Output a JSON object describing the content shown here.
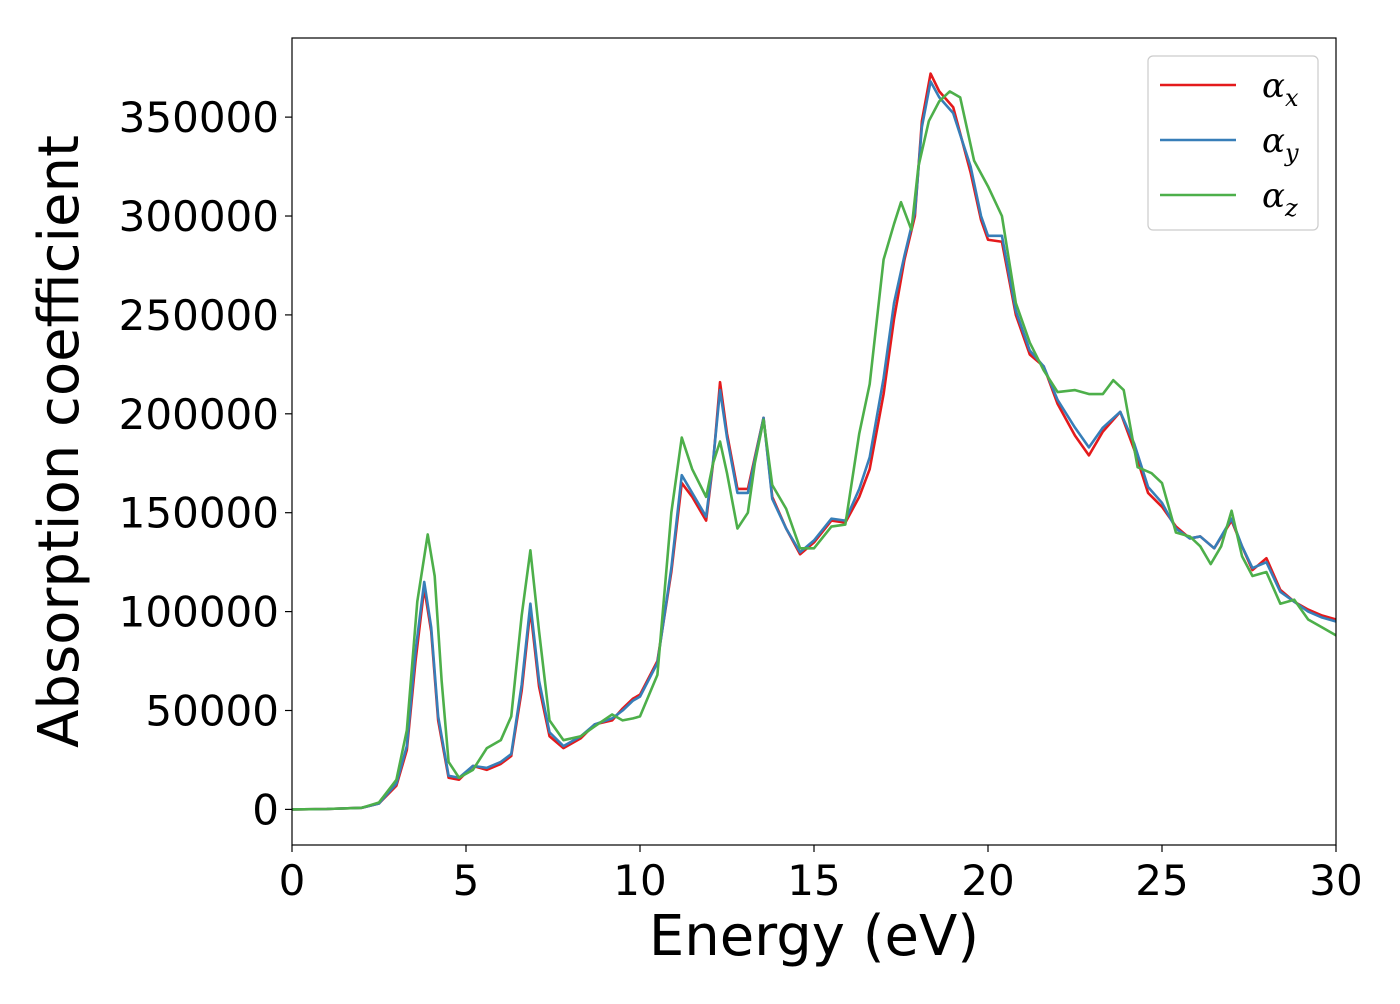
{
  "chart_data": {
    "type": "line",
    "xlabel": "Energy (eV)",
    "ylabel": "Absorption coefficient",
    "xlim": [
      0,
      30
    ],
    "ylim": [
      -18000,
      390000
    ],
    "xticks": [
      0,
      5,
      10,
      15,
      20,
      25,
      30
    ],
    "xtick_labels": [
      "0",
      "5",
      "10",
      "15",
      "20",
      "25",
      "30"
    ],
    "yticks": [
      0,
      50000,
      100000,
      150000,
      200000,
      250000,
      300000,
      350000
    ],
    "ytick_labels": [
      "0",
      "50000",
      "100000",
      "150000",
      "200000",
      "250000",
      "300000",
      "350000"
    ],
    "grid": false,
    "legend_position": "top-right",
    "series": [
      {
        "name": "αx",
        "label_base": "α",
        "label_sub": "x",
        "color": "#e41a1c",
        "points": [
          [
            0,
            0
          ],
          [
            1,
            200
          ],
          [
            2,
            800
          ],
          [
            2.5,
            3000
          ],
          [
            3.0,
            12000
          ],
          [
            3.3,
            30000
          ],
          [
            3.55,
            75000
          ],
          [
            3.8,
            112000
          ],
          [
            4.0,
            90000
          ],
          [
            4.2,
            45000
          ],
          [
            4.5,
            16000
          ],
          [
            4.8,
            15000
          ],
          [
            5.2,
            22000
          ],
          [
            5.6,
            20000
          ],
          [
            6.0,
            23000
          ],
          [
            6.3,
            27000
          ],
          [
            6.6,
            60000
          ],
          [
            6.85,
            101000
          ],
          [
            7.1,
            62000
          ],
          [
            7.4,
            37000
          ],
          [
            7.8,
            31000
          ],
          [
            8.3,
            36000
          ],
          [
            8.7,
            43000
          ],
          [
            9.2,
            45000
          ],
          [
            9.5,
            51000
          ],
          [
            9.8,
            56000
          ],
          [
            10.0,
            58000
          ],
          [
            10.5,
            75000
          ],
          [
            10.9,
            120000
          ],
          [
            11.2,
            165000
          ],
          [
            11.5,
            158000
          ],
          [
            11.9,
            146000
          ],
          [
            12.1,
            175000
          ],
          [
            12.3,
            216000
          ],
          [
            12.5,
            190000
          ],
          [
            12.8,
            162000
          ],
          [
            13.1,
            162000
          ],
          [
            13.3,
            178000
          ],
          [
            13.55,
            198000
          ],
          [
            13.8,
            158000
          ],
          [
            14.2,
            142000
          ],
          [
            14.6,
            129000
          ],
          [
            15.0,
            135000
          ],
          [
            15.5,
            146000
          ],
          [
            15.9,
            145000
          ],
          [
            16.3,
            158000
          ],
          [
            16.6,
            172000
          ],
          [
            17.0,
            210000
          ],
          [
            17.3,
            248000
          ],
          [
            17.6,
            278000
          ],
          [
            17.9,
            300000
          ],
          [
            18.1,
            348000
          ],
          [
            18.35,
            372000
          ],
          [
            18.6,
            363000
          ],
          [
            19.0,
            355000
          ],
          [
            19.5,
            322000
          ],
          [
            19.8,
            298000
          ],
          [
            20.0,
            288000
          ],
          [
            20.4,
            287000
          ],
          [
            20.8,
            250000
          ],
          [
            21.2,
            230000
          ],
          [
            21.6,
            224000
          ],
          [
            22.0,
            205000
          ],
          [
            22.5,
            189000
          ],
          [
            22.9,
            179000
          ],
          [
            23.3,
            191000
          ],
          [
            23.8,
            201000
          ],
          [
            24.2,
            182000
          ],
          [
            24.6,
            160000
          ],
          [
            25.0,
            153000
          ],
          [
            25.4,
            143000
          ],
          [
            25.8,
            137000
          ],
          [
            26.1,
            138000
          ],
          [
            26.5,
            132000
          ],
          [
            27.0,
            146000
          ],
          [
            27.3,
            133000
          ],
          [
            27.6,
            121000
          ],
          [
            28.0,
            127000
          ],
          [
            28.4,
            111000
          ],
          [
            28.8,
            105000
          ],
          [
            29.2,
            101000
          ],
          [
            29.6,
            98000
          ],
          [
            30,
            96000
          ]
        ]
      },
      {
        "name": "αy",
        "label_base": "α",
        "label_sub": "y",
        "color": "#377eb8",
        "points": [
          [
            0,
            0
          ],
          [
            1,
            200
          ],
          [
            2,
            800
          ],
          [
            2.5,
            3000
          ],
          [
            3.0,
            13000
          ],
          [
            3.3,
            32000
          ],
          [
            3.55,
            80000
          ],
          [
            3.8,
            115000
          ],
          [
            4.0,
            92000
          ],
          [
            4.2,
            47000
          ],
          [
            4.5,
            17000
          ],
          [
            4.8,
            16000
          ],
          [
            5.2,
            22000
          ],
          [
            5.6,
            21000
          ],
          [
            6.0,
            24000
          ],
          [
            6.3,
            28000
          ],
          [
            6.6,
            63000
          ],
          [
            6.85,
            104000
          ],
          [
            7.1,
            65000
          ],
          [
            7.4,
            39000
          ],
          [
            7.8,
            32000
          ],
          [
            8.3,
            37000
          ],
          [
            8.7,
            43000
          ],
          [
            9.2,
            46000
          ],
          [
            9.5,
            50000
          ],
          [
            9.8,
            55000
          ],
          [
            10.0,
            57000
          ],
          [
            10.5,
            74000
          ],
          [
            10.9,
            122000
          ],
          [
            11.2,
            169000
          ],
          [
            11.5,
            160000
          ],
          [
            11.9,
            148000
          ],
          [
            12.1,
            176000
          ],
          [
            12.3,
            212000
          ],
          [
            12.5,
            188000
          ],
          [
            12.8,
            160000
          ],
          [
            13.1,
            160000
          ],
          [
            13.3,
            177000
          ],
          [
            13.55,
            198000
          ],
          [
            13.8,
            157000
          ],
          [
            14.2,
            142000
          ],
          [
            14.6,
            130000
          ],
          [
            15.0,
            136000
          ],
          [
            15.5,
            147000
          ],
          [
            15.9,
            146000
          ],
          [
            16.3,
            162000
          ],
          [
            16.6,
            178000
          ],
          [
            17.0,
            218000
          ],
          [
            17.3,
            256000
          ],
          [
            17.6,
            280000
          ],
          [
            17.9,
            302000
          ],
          [
            18.1,
            345000
          ],
          [
            18.35,
            368000
          ],
          [
            18.6,
            360000
          ],
          [
            19.0,
            352000
          ],
          [
            19.5,
            325000
          ],
          [
            19.8,
            300000
          ],
          [
            20.0,
            290000
          ],
          [
            20.4,
            290000
          ],
          [
            20.8,
            252000
          ],
          [
            21.2,
            232000
          ],
          [
            21.6,
            224000
          ],
          [
            22.0,
            207000
          ],
          [
            22.5,
            193000
          ],
          [
            22.9,
            183000
          ],
          [
            23.3,
            193000
          ],
          [
            23.8,
            201000
          ],
          [
            24.2,
            185000
          ],
          [
            24.6,
            163000
          ],
          [
            25.0,
            155000
          ],
          [
            25.4,
            142000
          ],
          [
            25.8,
            137000
          ],
          [
            26.1,
            138000
          ],
          [
            26.5,
            132000
          ],
          [
            27.0,
            147000
          ],
          [
            27.3,
            133000
          ],
          [
            27.6,
            122000
          ],
          [
            28.0,
            125000
          ],
          [
            28.4,
            110000
          ],
          [
            28.8,
            105000
          ],
          [
            29.2,
            100000
          ],
          [
            29.6,
            97000
          ],
          [
            30,
            95000
          ]
        ]
      },
      {
        "name": "αz",
        "label_base": "α",
        "label_sub": "z",
        "color": "#4daf4a",
        "points": [
          [
            0,
            0
          ],
          [
            1,
            200
          ],
          [
            2,
            800
          ],
          [
            2.5,
            3500
          ],
          [
            3.0,
            15000
          ],
          [
            3.3,
            40000
          ],
          [
            3.6,
            105000
          ],
          [
            3.9,
            139000
          ],
          [
            4.1,
            118000
          ],
          [
            4.3,
            65000
          ],
          [
            4.5,
            24000
          ],
          [
            4.8,
            16000
          ],
          [
            5.2,
            20000
          ],
          [
            5.6,
            31000
          ],
          [
            6.0,
            35000
          ],
          [
            6.3,
            47000
          ],
          [
            6.6,
            98000
          ],
          [
            6.85,
            131000
          ],
          [
            7.1,
            90000
          ],
          [
            7.4,
            45000
          ],
          [
            7.8,
            35000
          ],
          [
            8.3,
            37000
          ],
          [
            8.7,
            42000
          ],
          [
            9.2,
            48000
          ],
          [
            9.5,
            45000
          ],
          [
            9.8,
            46000
          ],
          [
            10.0,
            47000
          ],
          [
            10.5,
            68000
          ],
          [
            10.9,
            150000
          ],
          [
            11.2,
            188000
          ],
          [
            11.5,
            172000
          ],
          [
            11.9,
            158000
          ],
          [
            12.1,
            175000
          ],
          [
            12.3,
            186000
          ],
          [
            12.5,
            170000
          ],
          [
            12.8,
            142000
          ],
          [
            13.1,
            150000
          ],
          [
            13.3,
            175000
          ],
          [
            13.55,
            197000
          ],
          [
            13.8,
            164000
          ],
          [
            14.2,
            152000
          ],
          [
            14.6,
            132000
          ],
          [
            15.0,
            132000
          ],
          [
            15.5,
            143000
          ],
          [
            15.9,
            144000
          ],
          [
            16.3,
            190000
          ],
          [
            16.6,
            215000
          ],
          [
            17.0,
            278000
          ],
          [
            17.3,
            296000
          ],
          [
            17.5,
            307000
          ],
          [
            17.8,
            293000
          ],
          [
            18.0,
            325000
          ],
          [
            18.3,
            348000
          ],
          [
            18.6,
            358000
          ],
          [
            18.9,
            363000
          ],
          [
            19.2,
            360000
          ],
          [
            19.6,
            328000
          ],
          [
            20.0,
            315000
          ],
          [
            20.4,
            300000
          ],
          [
            20.8,
            256000
          ],
          [
            21.2,
            236000
          ],
          [
            21.6,
            222000
          ],
          [
            22.0,
            211000
          ],
          [
            22.5,
            212000
          ],
          [
            22.9,
            210000
          ],
          [
            23.3,
            210000
          ],
          [
            23.6,
            217000
          ],
          [
            23.9,
            212000
          ],
          [
            24.3,
            173000
          ],
          [
            24.7,
            170000
          ],
          [
            25.0,
            165000
          ],
          [
            25.4,
            140000
          ],
          [
            25.8,
            138000
          ],
          [
            26.1,
            133000
          ],
          [
            26.4,
            124000
          ],
          [
            26.7,
            133000
          ],
          [
            27.0,
            151000
          ],
          [
            27.3,
            128000
          ],
          [
            27.6,
            118000
          ],
          [
            28.0,
            120000
          ],
          [
            28.4,
            104000
          ],
          [
            28.8,
            106000
          ],
          [
            29.2,
            96000
          ],
          [
            29.6,
            92000
          ],
          [
            30,
            88000
          ]
        ]
      }
    ]
  }
}
